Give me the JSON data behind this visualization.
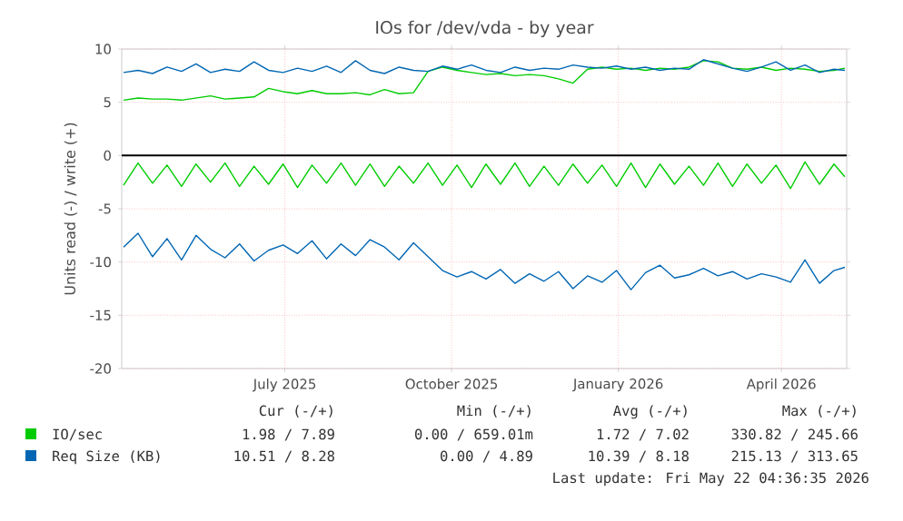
{
  "chart_data": {
    "type": "line",
    "title": "IOs for /dev/vda - by year",
    "ylabel": "Units read (-) / write (+)",
    "xlim": [
      "2025-04-17",
      "2026-05-22"
    ],
    "xticks": [
      {
        "value": "2025-07-16",
        "label": "July 2025"
      },
      {
        "value": "2025-10-16",
        "label": "October 2025"
      },
      {
        "value": "2026-01-16",
        "label": "January 2026"
      },
      {
        "value": "2026-04-16",
        "label": "April 2026"
      }
    ],
    "ylim": [
      -20,
      10
    ],
    "yticks": [
      -20,
      -15,
      -10,
      -5,
      0,
      5,
      10
    ],
    "grid": true,
    "legend": "bottom",
    "marker": "none",
    "line_style": "solid",
    "x": [
      "2025-04-18",
      "2025-04-26",
      "2025-05-04",
      "2025-05-12",
      "2025-05-20",
      "2025-05-28",
      "2025-06-05",
      "2025-06-13",
      "2025-06-21",
      "2025-06-29",
      "2025-07-07",
      "2025-07-15",
      "2025-07-23",
      "2025-07-31",
      "2025-08-08",
      "2025-08-16",
      "2025-08-24",
      "2025-09-01",
      "2025-09-09",
      "2025-09-17",
      "2025-09-25",
      "2025-10-03",
      "2025-10-11",
      "2025-10-19",
      "2025-10-27",
      "2025-11-04",
      "2025-11-12",
      "2025-11-20",
      "2025-11-28",
      "2025-12-06",
      "2025-12-14",
      "2025-12-22",
      "2025-12-30",
      "2026-01-07",
      "2026-01-15",
      "2026-01-23",
      "2026-01-31",
      "2026-02-08",
      "2026-02-16",
      "2026-02-24",
      "2026-03-04",
      "2026-03-12",
      "2026-03-20",
      "2026-03-28",
      "2026-04-05",
      "2026-04-13",
      "2026-04-21",
      "2026-04-29",
      "2026-05-07",
      "2026-05-15",
      "2026-05-21"
    ],
    "series": [
      {
        "name": "IO/sec",
        "color": "#00cc00",
        "values": [
          5.2,
          5.4,
          5.3,
          5.3,
          5.2,
          5.4,
          5.6,
          5.3,
          5.4,
          5.5,
          6.3,
          6.0,
          5.8,
          6.1,
          5.8,
          5.8,
          5.9,
          5.7,
          6.2,
          5.8,
          5.9,
          7.9,
          8.3,
          8.0,
          7.8,
          7.6,
          7.7,
          7.5,
          7.6,
          7.5,
          7.2,
          6.8,
          8.1,
          8.3,
          8.1,
          8.2,
          8.0,
          8.2,
          8.1,
          8.3,
          8.9,
          8.8,
          8.2,
          8.1,
          8.3,
          8.0,
          8.2,
          8.1,
          7.9,
          8.0,
          8.2
        ]
      },
      {
        "color": "#00cc00",
        "values": [
          -2.8,
          -0.7,
          -2.6,
          -0.9,
          -2.9,
          -0.8,
          -2.5,
          -0.7,
          -2.9,
          -1.0,
          -2.7,
          -0.8,
          -3.0,
          -0.9,
          -2.6,
          -0.7,
          -2.8,
          -0.8,
          -2.9,
          -1.0,
          -2.6,
          -0.7,
          -2.8,
          -0.9,
          -3.0,
          -0.8,
          -2.7,
          -0.7,
          -2.9,
          -1.0,
          -2.8,
          -0.8,
          -2.6,
          -0.9,
          -2.9,
          -0.7,
          -3.0,
          -0.8,
          -2.7,
          -1.0,
          -2.8,
          -0.7,
          -2.9,
          -0.8,
          -2.6,
          -0.9,
          -3.1,
          -0.6,
          -2.7,
          -0.8,
          -2.0
        ]
      },
      {
        "name": "Req Size (KB)",
        "color": "#0066b3",
        "values": [
          7.8,
          8.0,
          7.7,
          8.3,
          7.9,
          8.6,
          7.8,
          8.1,
          7.9,
          8.8,
          8.0,
          7.8,
          8.2,
          7.9,
          8.4,
          7.8,
          8.9,
          8.0,
          7.7,
          8.3,
          8.0,
          7.9,
          8.4,
          8.1,
          8.5,
          8.0,
          7.8,
          8.3,
          8.0,
          8.2,
          8.1,
          8.5,
          8.3,
          8.2,
          8.4,
          8.1,
          8.3,
          8.0,
          8.2,
          8.1,
          9.0,
          8.6,
          8.2,
          7.9,
          8.3,
          8.8,
          8.0,
          8.5,
          7.8,
          8.1,
          8.0
        ]
      },
      {
        "color": "#0066b3",
        "values": [
          -8.6,
          -7.3,
          -9.5,
          -7.8,
          -9.8,
          -7.5,
          -8.8,
          -9.6,
          -8.3,
          -9.9,
          -8.9,
          -8.4,
          -9.2,
          -8.0,
          -9.7,
          -8.3,
          -9.4,
          -7.9,
          -8.6,
          -9.8,
          -8.2,
          -9.5,
          -10.8,
          -11.4,
          -10.9,
          -11.6,
          -10.7,
          -12.0,
          -11.1,
          -11.8,
          -10.9,
          -12.5,
          -11.3,
          -11.9,
          -10.8,
          -12.6,
          -11.0,
          -10.3,
          -11.5,
          -11.2,
          -10.6,
          -11.3,
          -10.9,
          -11.6,
          -11.1,
          -11.4,
          -11.9,
          -9.8,
          -12.0,
          -10.8,
          -10.5
        ]
      }
    ],
    "ref_lines": [
      {
        "axis": "y",
        "value": 0,
        "color": "#000000"
      }
    ],
    "annotations": [
      "Cur (-/+)",
      "Min (-/+)",
      "Avg (-/+)",
      "Max (-/+)",
      "1.98 / 7.89",
      "0.00 / 659.01m",
      "1.72 / 7.02",
      "330.82 / 245.66",
      "10.51 / 8.28",
      "0.00 / 4.89",
      "10.39 / 8.18",
      "215.13 / 313.65",
      "Last update: Fri May 22 04:36:35 2026"
    ]
  }
}
